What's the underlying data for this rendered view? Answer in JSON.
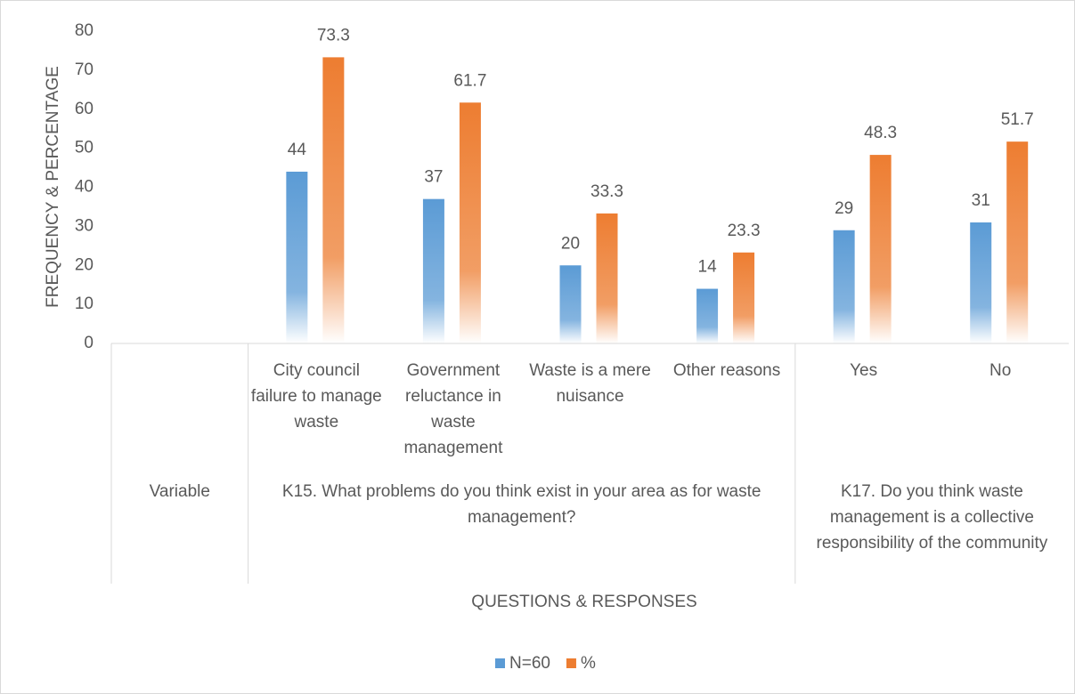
{
  "chart_data": {
    "type": "bar",
    "categories": [
      null,
      "City council failure to manage waste",
      "Government reluctance in waste management",
      "Waste is a mere nuisance",
      "Other reasons",
      "Yes",
      "No"
    ],
    "groups": [
      {
        "label": "Variable",
        "span": 1
      },
      {
        "label": "K15. What problems do you think exist in your area as for waste management?",
        "span": 4
      },
      {
        "label": "K17. Do you think waste management is a collective responsibility of the community",
        "span": 2
      }
    ],
    "series": [
      {
        "name": "N=60",
        "color": "#5b9bd5",
        "values": [
          null,
          44,
          37,
          20,
          14,
          29,
          31
        ]
      },
      {
        "name": "%",
        "color": "#ed7d31",
        "values": [
          null,
          73.3,
          61.7,
          33.3,
          23.3,
          48.3,
          51.7
        ]
      }
    ],
    "ylim": [
      0,
      80
    ],
    "yticks": [
      0,
      10,
      20,
      30,
      40,
      50,
      60,
      70,
      80
    ],
    "ylabel": "FREQUENCY & PERCENTAGE",
    "xlabel": "QUESTIONS & RESPONSES",
    "grid": false,
    "legend": "bottom"
  }
}
